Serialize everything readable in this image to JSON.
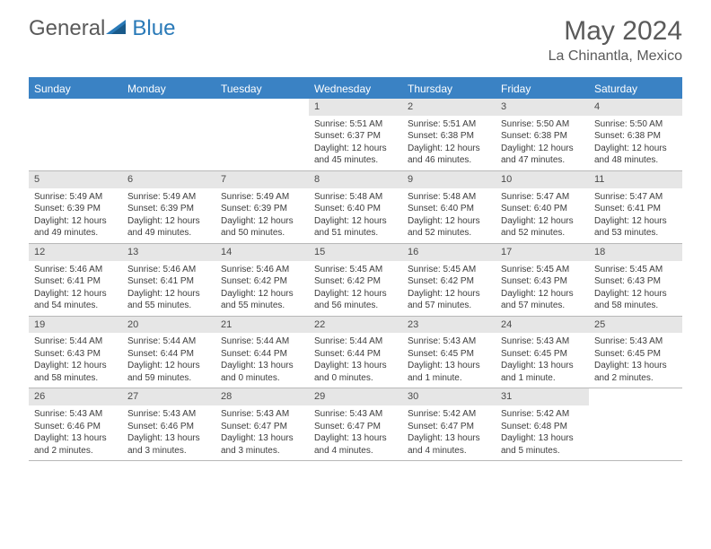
{
  "brand": {
    "part1": "General",
    "part2": "Blue"
  },
  "title": "May 2024",
  "location": "La Chinantla, Mexico",
  "colors": {
    "header_bg": "#3a82c4",
    "header_text": "#ffffff",
    "daynum_bg": "#e6e6e6",
    "body_text": "#3c3c3c",
    "title_text": "#5a5a5a",
    "brand_blue": "#2a7ab8",
    "rule": "#b8b8b8"
  },
  "day_names": [
    "Sunday",
    "Monday",
    "Tuesday",
    "Wednesday",
    "Thursday",
    "Friday",
    "Saturday"
  ],
  "weeks": [
    [
      {
        "n": "",
        "sr": "",
        "ss": "",
        "dl": ""
      },
      {
        "n": "",
        "sr": "",
        "ss": "",
        "dl": ""
      },
      {
        "n": "",
        "sr": "",
        "ss": "",
        "dl": ""
      },
      {
        "n": "1",
        "sr": "Sunrise: 5:51 AM",
        "ss": "Sunset: 6:37 PM",
        "dl": "Daylight: 12 hours and 45 minutes."
      },
      {
        "n": "2",
        "sr": "Sunrise: 5:51 AM",
        "ss": "Sunset: 6:38 PM",
        "dl": "Daylight: 12 hours and 46 minutes."
      },
      {
        "n": "3",
        "sr": "Sunrise: 5:50 AM",
        "ss": "Sunset: 6:38 PM",
        "dl": "Daylight: 12 hours and 47 minutes."
      },
      {
        "n": "4",
        "sr": "Sunrise: 5:50 AM",
        "ss": "Sunset: 6:38 PM",
        "dl": "Daylight: 12 hours and 48 minutes."
      }
    ],
    [
      {
        "n": "5",
        "sr": "Sunrise: 5:49 AM",
        "ss": "Sunset: 6:39 PM",
        "dl": "Daylight: 12 hours and 49 minutes."
      },
      {
        "n": "6",
        "sr": "Sunrise: 5:49 AM",
        "ss": "Sunset: 6:39 PM",
        "dl": "Daylight: 12 hours and 49 minutes."
      },
      {
        "n": "7",
        "sr": "Sunrise: 5:49 AM",
        "ss": "Sunset: 6:39 PM",
        "dl": "Daylight: 12 hours and 50 minutes."
      },
      {
        "n": "8",
        "sr": "Sunrise: 5:48 AM",
        "ss": "Sunset: 6:40 PM",
        "dl": "Daylight: 12 hours and 51 minutes."
      },
      {
        "n": "9",
        "sr": "Sunrise: 5:48 AM",
        "ss": "Sunset: 6:40 PM",
        "dl": "Daylight: 12 hours and 52 minutes."
      },
      {
        "n": "10",
        "sr": "Sunrise: 5:47 AM",
        "ss": "Sunset: 6:40 PM",
        "dl": "Daylight: 12 hours and 52 minutes."
      },
      {
        "n": "11",
        "sr": "Sunrise: 5:47 AM",
        "ss": "Sunset: 6:41 PM",
        "dl": "Daylight: 12 hours and 53 minutes."
      }
    ],
    [
      {
        "n": "12",
        "sr": "Sunrise: 5:46 AM",
        "ss": "Sunset: 6:41 PM",
        "dl": "Daylight: 12 hours and 54 minutes."
      },
      {
        "n": "13",
        "sr": "Sunrise: 5:46 AM",
        "ss": "Sunset: 6:41 PM",
        "dl": "Daylight: 12 hours and 55 minutes."
      },
      {
        "n": "14",
        "sr": "Sunrise: 5:46 AM",
        "ss": "Sunset: 6:42 PM",
        "dl": "Daylight: 12 hours and 55 minutes."
      },
      {
        "n": "15",
        "sr": "Sunrise: 5:45 AM",
        "ss": "Sunset: 6:42 PM",
        "dl": "Daylight: 12 hours and 56 minutes."
      },
      {
        "n": "16",
        "sr": "Sunrise: 5:45 AM",
        "ss": "Sunset: 6:42 PM",
        "dl": "Daylight: 12 hours and 57 minutes."
      },
      {
        "n": "17",
        "sr": "Sunrise: 5:45 AM",
        "ss": "Sunset: 6:43 PM",
        "dl": "Daylight: 12 hours and 57 minutes."
      },
      {
        "n": "18",
        "sr": "Sunrise: 5:45 AM",
        "ss": "Sunset: 6:43 PM",
        "dl": "Daylight: 12 hours and 58 minutes."
      }
    ],
    [
      {
        "n": "19",
        "sr": "Sunrise: 5:44 AM",
        "ss": "Sunset: 6:43 PM",
        "dl": "Daylight: 12 hours and 58 minutes."
      },
      {
        "n": "20",
        "sr": "Sunrise: 5:44 AM",
        "ss": "Sunset: 6:44 PM",
        "dl": "Daylight: 12 hours and 59 minutes."
      },
      {
        "n": "21",
        "sr": "Sunrise: 5:44 AM",
        "ss": "Sunset: 6:44 PM",
        "dl": "Daylight: 13 hours and 0 minutes."
      },
      {
        "n": "22",
        "sr": "Sunrise: 5:44 AM",
        "ss": "Sunset: 6:44 PM",
        "dl": "Daylight: 13 hours and 0 minutes."
      },
      {
        "n": "23",
        "sr": "Sunrise: 5:43 AM",
        "ss": "Sunset: 6:45 PM",
        "dl": "Daylight: 13 hours and 1 minute."
      },
      {
        "n": "24",
        "sr": "Sunrise: 5:43 AM",
        "ss": "Sunset: 6:45 PM",
        "dl": "Daylight: 13 hours and 1 minute."
      },
      {
        "n": "25",
        "sr": "Sunrise: 5:43 AM",
        "ss": "Sunset: 6:45 PM",
        "dl": "Daylight: 13 hours and 2 minutes."
      }
    ],
    [
      {
        "n": "26",
        "sr": "Sunrise: 5:43 AM",
        "ss": "Sunset: 6:46 PM",
        "dl": "Daylight: 13 hours and 2 minutes."
      },
      {
        "n": "27",
        "sr": "Sunrise: 5:43 AM",
        "ss": "Sunset: 6:46 PM",
        "dl": "Daylight: 13 hours and 3 minutes."
      },
      {
        "n": "28",
        "sr": "Sunrise: 5:43 AM",
        "ss": "Sunset: 6:47 PM",
        "dl": "Daylight: 13 hours and 3 minutes."
      },
      {
        "n": "29",
        "sr": "Sunrise: 5:43 AM",
        "ss": "Sunset: 6:47 PM",
        "dl": "Daylight: 13 hours and 4 minutes."
      },
      {
        "n": "30",
        "sr": "Sunrise: 5:42 AM",
        "ss": "Sunset: 6:47 PM",
        "dl": "Daylight: 13 hours and 4 minutes."
      },
      {
        "n": "31",
        "sr": "Sunrise: 5:42 AM",
        "ss": "Sunset: 6:48 PM",
        "dl": "Daylight: 13 hours and 5 minutes."
      },
      {
        "n": "",
        "sr": "",
        "ss": "",
        "dl": ""
      }
    ]
  ]
}
